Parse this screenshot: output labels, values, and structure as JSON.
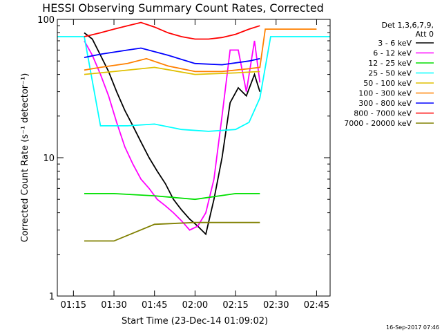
{
  "chart_data": {
    "type": "line",
    "title": "HESSI Observing Summary Count Rates, Corrected",
    "xlabel": "Start Time (23-Dec-14 01:09:02)",
    "ylabel": "Corrected Count Rate (s⁻¹ detector⁻¹)",
    "y_scale": "log",
    "ylim": [
      1,
      100
    ],
    "xlim": [
      "01:09:02",
      "02:50:00"
    ],
    "x_ticks": [
      "01:15",
      "01:30",
      "01:45",
      "02:00",
      "02:15",
      "02:30",
      "02:45"
    ],
    "y_ticks": [
      "1",
      "10",
      "100"
    ],
    "legend_header": [
      "Det 1,3,6,7,9,",
      "Att 0"
    ],
    "legend_position": "right",
    "grid": false,
    "series": [
      {
        "name": "3 - 6 keV",
        "color": "#000000",
        "x": [
          "01:19",
          "01:22",
          "01:25",
          "01:28",
          "01:31",
          "01:34",
          "01:37",
          "01:40",
          "01:43",
          "01:46",
          "01:49",
          "01:52",
          "01:55",
          "01:58",
          "02:01",
          "02:04",
          "02:07",
          "02:10",
          "02:13",
          "02:16",
          "02:19",
          "02:22",
          "02:24"
        ],
        "y": [
          80,
          72,
          55,
          42,
          30,
          22,
          17,
          13,
          10,
          8,
          6.5,
          5,
          4.2,
          3.6,
          3.2,
          2.8,
          5,
          10,
          25,
          32,
          28,
          40,
          30
        ]
      },
      {
        "name": "6 - 12 keV",
        "color": "#ff00ff",
        "x": [
          "01:19",
          "01:22",
          "01:25",
          "01:28",
          "01:31",
          "01:34",
          "01:37",
          "01:40",
          "01:43",
          "01:46",
          "01:49",
          "01:52",
          "01:55",
          "01:58",
          "02:01",
          "02:04",
          "02:07",
          "02:10",
          "02:13",
          "02:16",
          "02:19",
          "02:22",
          "02:24"
        ],
        "y": [
          70,
          55,
          40,
          28,
          18,
          12,
          9,
          7,
          6,
          5,
          4.5,
          4,
          3.5,
          3,
          3.2,
          4,
          7,
          20,
          60,
          60,
          30,
          70,
          35
        ]
      },
      {
        "name": "12 - 25 keV",
        "color": "#00e000",
        "x": [
          "01:19",
          "01:30",
          "01:45",
          "02:00",
          "02:15",
          "02:24"
        ],
        "y": [
          5.5,
          5.5,
          5.3,
          5.0,
          5.5,
          5.5
        ]
      },
      {
        "name": "25 - 50 keV",
        "color": "#00ffff",
        "x": [
          "01:09",
          "01:19",
          "01:25",
          "01:35",
          "01:45",
          "01:55",
          "02:05",
          "02:15",
          "02:20",
          "02:24",
          "02:28",
          "02:50"
        ],
        "y": [
          75,
          75,
          17,
          17,
          17.5,
          16,
          15.5,
          16,
          18,
          27,
          75,
          75
        ]
      },
      {
        "name": "50 - 100 keV",
        "color": "#e0c000",
        "x": [
          "01:19",
          "01:30",
          "01:45",
          "02:00",
          "02:15",
          "02:24"
        ],
        "y": [
          40,
          42,
          45,
          40,
          41,
          42
        ]
      },
      {
        "name": "100 - 300 keV",
        "color": "#ff8000",
        "x": [
          "01:19",
          "01:25",
          "01:35",
          "01:42",
          "01:50",
          "02:00",
          "02:10",
          "02:20",
          "02:24",
          "02:26",
          "02:45"
        ],
        "y": [
          43,
          45,
          48,
          52,
          46,
          42,
          42,
          44,
          45,
          85,
          85
        ]
      },
      {
        "name": "300 - 800 keV",
        "color": "#0000ff",
        "x": [
          "01:19",
          "01:25",
          "01:35",
          "01:40",
          "01:50",
          "02:00",
          "02:10",
          "02:20",
          "02:24"
        ],
        "y": [
          53,
          56,
          60,
          62,
          55,
          48,
          47,
          50,
          52
        ]
      },
      {
        "name": "800 - 7000 keV",
        "color": "#ff0000",
        "x": [
          "01:19",
          "01:25",
          "01:30",
          "01:35",
          "01:40",
          "01:45",
          "01:50",
          "01:55",
          "02:00",
          "02:05",
          "02:10",
          "02:15",
          "02:20",
          "02:24"
        ],
        "y": [
          75,
          80,
          85,
          90,
          95,
          88,
          80,
          75,
          72,
          72,
          74,
          78,
          85,
          90
        ]
      },
      {
        "name": "7000 - 20000 keV",
        "color": "#808000",
        "x": [
          "01:19",
          "01:30",
          "01:45",
          "02:00",
          "02:15",
          "02:24"
        ],
        "y": [
          2.5,
          2.5,
          3.3,
          3.4,
          3.4,
          3.4
        ]
      }
    ],
    "stamp": "16-Sep-2017 07:46"
  }
}
